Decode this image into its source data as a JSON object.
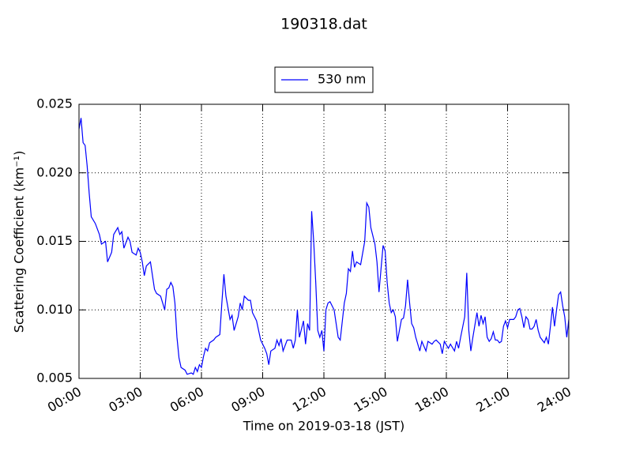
{
  "chart_data": {
    "type": "line",
    "title": "190318.dat",
    "x_label": "Time on 2019-03-18 (JST)",
    "y_label": "Scattering Coefficient (km⁻¹)",
    "legend": "upper center",
    "grid": true,
    "xlim": [
      0,
      24
    ],
    "xticks": [
      {
        "value": 0,
        "label": "00:00"
      },
      {
        "value": 3,
        "label": "03:00"
      },
      {
        "value": 6,
        "label": "06:00"
      },
      {
        "value": 9,
        "label": "09:00"
      },
      {
        "value": 12,
        "label": "12:00"
      },
      {
        "value": 15,
        "label": "15:00"
      },
      {
        "value": 18,
        "label": "18:00"
      },
      {
        "value": 21,
        "label": "21:00"
      },
      {
        "value": 24,
        "label": "24:00"
      }
    ],
    "ylim": [
      0.005,
      0.025
    ],
    "yticks": [
      0.005,
      {
        "value": 0.01,
        "label": "0.010"
      },
      0.015,
      {
        "value": 0.02,
        "label": "0.020"
      },
      0.025
    ],
    "x": [
      0,
      0.1,
      0.2,
      0.3,
      0.4,
      0.5,
      0.6,
      0.8,
      1.0,
      1.1,
      1.3,
      1.4,
      1.6,
      1.7,
      1.9,
      2.0,
      2.1,
      2.2,
      2.4,
      2.5,
      2.6,
      2.8,
      2.9,
      3.0,
      3.1,
      3.2,
      3.3,
      3.5,
      3.6,
      3.7,
      3.8,
      4.0,
      4.2,
      4.3,
      4.4,
      4.5,
      4.6,
      4.7,
      4.8,
      4.9,
      5.0,
      5.2,
      5.3,
      5.5,
      5.6,
      5.7,
      5.8,
      5.9,
      6.0,
      6.1,
      6.2,
      6.3,
      6.4,
      6.6,
      6.7,
      6.9,
      7.0,
      7.1,
      7.2,
      7.4,
      7.5,
      7.6,
      7.8,
      7.9,
      8.0,
      8.1,
      8.3,
      8.4,
      8.5,
      8.7,
      8.8,
      8.9,
      9.1,
      9.2,
      9.3,
      9.4,
      9.6,
      9.7,
      9.8,
      9.9,
      10.0,
      10.2,
      10.4,
      10.5,
      10.6,
      10.7,
      10.8,
      11.0,
      11.1,
      11.2,
      11.3,
      11.4,
      11.5,
      11.6,
      11.7,
      11.8,
      11.9,
      12.0,
      12.1,
      12.2,
      12.3,
      12.5,
      12.7,
      12.8,
      13.0,
      13.1,
      13.2,
      13.3,
      13.4,
      13.5,
      13.6,
      13.8,
      14.0,
      14.1,
      14.2,
      14.3,
      14.5,
      14.6,
      14.7,
      14.8,
      14.9,
      15.0,
      15.1,
      15.2,
      15.3,
      15.4,
      15.5,
      15.6,
      15.7,
      15.8,
      15.9,
      16.0,
      16.1,
      16.2,
      16.3,
      16.4,
      16.5,
      16.6,
      16.7,
      16.8,
      17.0,
      17.1,
      17.3,
      17.4,
      17.5,
      17.7,
      17.8,
      17.9,
      18.1,
      18.2,
      18.4,
      18.5,
      18.6,
      18.7,
      18.9,
      19.0,
      19.1,
      19.2,
      19.3,
      19.5,
      19.6,
      19.7,
      19.8,
      19.9,
      20.0,
      20.1,
      20.2,
      20.3,
      20.4,
      20.5,
      20.6,
      20.7,
      20.8,
      20.9,
      21.0,
      21.1,
      21.2,
      21.3,
      21.4,
      21.5,
      21.6,
      21.7,
      21.8,
      21.9,
      22.0,
      22.1,
      22.2,
      22.3,
      22.4,
      22.5,
      22.6,
      22.7,
      22.8,
      22.9,
      23.0,
      23.1,
      23.2,
      23.3,
      23.4,
      23.5,
      23.6,
      23.7,
      23.8,
      23.9,
      24.0
    ],
    "series": [
      {
        "name": "530 nm",
        "color": "#0000ff",
        "values": [
          0.0232,
          0.024,
          0.0222,
          0.022,
          0.0205,
          0.0185,
          0.0168,
          0.0163,
          0.0155,
          0.0148,
          0.015,
          0.0135,
          0.0142,
          0.0155,
          0.016,
          0.0155,
          0.0157,
          0.0145,
          0.0153,
          0.015,
          0.0142,
          0.014,
          0.0145,
          0.0142,
          0.0135,
          0.0125,
          0.0132,
          0.0135,
          0.0125,
          0.0115,
          0.0112,
          0.011,
          0.01,
          0.0115,
          0.0116,
          0.012,
          0.0117,
          0.0105,
          0.008,
          0.0065,
          0.0058,
          0.0056,
          0.0053,
          0.0054,
          0.0053,
          0.0058,
          0.0055,
          0.006,
          0.0058,
          0.0066,
          0.0072,
          0.007,
          0.0076,
          0.0078,
          0.008,
          0.0082,
          0.0105,
          0.0126,
          0.011,
          0.0093,
          0.0096,
          0.0085,
          0.0095,
          0.0105,
          0.01,
          0.011,
          0.0107,
          0.0107,
          0.0098,
          0.0092,
          0.0085,
          0.0078,
          0.0072,
          0.0068,
          0.006,
          0.007,
          0.0072,
          0.0078,
          0.0074,
          0.0079,
          0.007,
          0.0078,
          0.0078,
          0.0072,
          0.0078,
          0.01,
          0.008,
          0.0092,
          0.0075,
          0.009,
          0.0085,
          0.0172,
          0.015,
          0.012,
          0.0085,
          0.008,
          0.0085,
          0.007,
          0.01,
          0.0105,
          0.0106,
          0.01,
          0.008,
          0.0078,
          0.0105,
          0.0112,
          0.013,
          0.0128,
          0.0143,
          0.0131,
          0.0135,
          0.0133,
          0.015,
          0.0178,
          0.0175,
          0.016,
          0.0148,
          0.0135,
          0.0113,
          0.013,
          0.0147,
          0.0143,
          0.012,
          0.0105,
          0.0098,
          0.01,
          0.0095,
          0.0077,
          0.0085,
          0.0093,
          0.0094,
          0.0103,
          0.0122,
          0.0105,
          0.009,
          0.0087,
          0.008,
          0.0075,
          0.007,
          0.0077,
          0.007,
          0.0077,
          0.0075,
          0.0077,
          0.0078,
          0.0075,
          0.0068,
          0.0077,
          0.0072,
          0.0075,
          0.007,
          0.0077,
          0.0072,
          0.008,
          0.0095,
          0.0127,
          0.0085,
          0.007,
          0.008,
          0.0098,
          0.0088,
          0.0096,
          0.009,
          0.0095,
          0.008,
          0.0077,
          0.0079,
          0.0084,
          0.0078,
          0.0078,
          0.0076,
          0.0077,
          0.0088,
          0.0092,
          0.0087,
          0.0093,
          0.0093,
          0.0093,
          0.0095,
          0.01,
          0.0101,
          0.0095,
          0.0087,
          0.0095,
          0.0093,
          0.0086,
          0.0086,
          0.0088,
          0.0093,
          0.0085,
          0.008,
          0.0078,
          0.0076,
          0.008,
          0.0075,
          0.0088,
          0.0102,
          0.0088,
          0.01,
          0.0111,
          0.0113,
          0.0103,
          0.0095,
          0.008,
          0.0093
        ]
      }
    ]
  }
}
